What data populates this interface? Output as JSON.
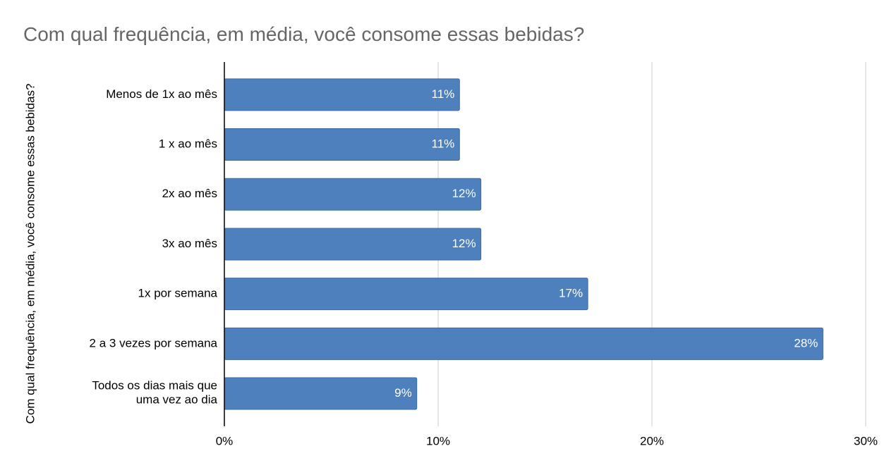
{
  "chart_data": {
    "type": "bar",
    "orientation": "horizontal",
    "title": "Com qual frequência, em média, você consome essas bebidas?",
    "y_label": "Com qual frequência, em média, você consome essas bebidas?",
    "categories": [
      "Menos de 1x ao mês",
      "1 x ao mês",
      "2x ao mês",
      "3x ao mês",
      "1x por semana",
      "2 a 3 vezes por semana",
      "Todos os dias mais que uma vez ao dia"
    ],
    "values": [
      11,
      11,
      12,
      12,
      17,
      28,
      9
    ],
    "value_labels": [
      "11%",
      "11%",
      "12%",
      "12%",
      "17%",
      "28%",
      "9%"
    ],
    "color": "#4e80bd",
    "xlim": [
      0,
      30
    ],
    "xticks": [
      {
        "value": 0,
        "label": "0%"
      },
      {
        "value": 10,
        "label": "10%"
      },
      {
        "value": 20,
        "label": "20%"
      },
      {
        "value": 30,
        "label": "30%"
      }
    ],
    "grid": true
  }
}
